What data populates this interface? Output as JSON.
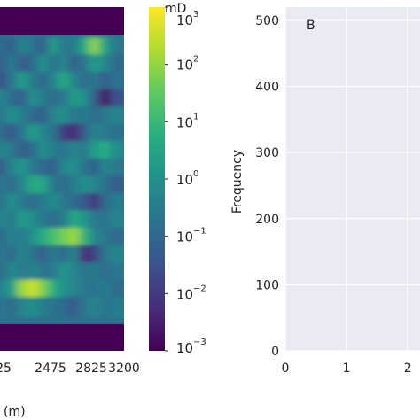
{
  "chart_data": [
    {
      "type": "heatmap",
      "panel": "A",
      "xlabel_fragment": "(m)",
      "x_ticks": [
        "25",
        "2475",
        "2825",
        "3200"
      ],
      "colorbar": {
        "unit_label": "mD",
        "scale": "log",
        "range": [
          0.001,
          1000
        ],
        "tick_bases": [
          "10",
          "10",
          "10",
          "10",
          "10",
          "10",
          "10"
        ],
        "tick_exponents": [
          "3",
          "2",
          "1",
          "0",
          "−1",
          "−2",
          "−3"
        ],
        "colormap": "viridis"
      },
      "bands": [
        {
          "row": 0.04,
          "values": [
            0.35,
            0.3,
            0.45,
            0.38,
            0.3,
            0.55,
            0.4,
            0.42,
            0.6,
            0.82,
            0.55,
            0.4
          ]
        },
        {
          "row": 0.1,
          "values": [
            0.3,
            0.42,
            0.28,
            0.35,
            0.5,
            0.38,
            0.45,
            0.3,
            0.4,
            0.55,
            0.45,
            0.35
          ]
        },
        {
          "row": 0.16,
          "values": [
            0.25,
            0.4,
            0.55,
            0.42,
            0.33,
            0.45,
            0.6,
            0.45,
            0.35,
            0.4,
            0.3,
            0.38
          ]
        },
        {
          "row": 0.22,
          "values": [
            0.45,
            0.35,
            0.3,
            0.5,
            0.42,
            0.35,
            0.4,
            0.55,
            0.5,
            0.3,
            0.05,
            0.25
          ]
        },
        {
          "row": 0.28,
          "values": [
            0.4,
            0.5,
            0.42,
            0.35,
            0.3,
            0.45,
            0.5,
            0.38,
            0.42,
            0.35,
            0.4,
            0.45
          ]
        },
        {
          "row": 0.34,
          "values": [
            0.35,
            0.28,
            0.4,
            0.55,
            0.45,
            0.38,
            0.18,
            0.12,
            0.3,
            0.45,
            0.4,
            0.38
          ]
        },
        {
          "row": 0.4,
          "values": [
            0.45,
            0.4,
            0.3,
            0.35,
            0.5,
            0.42,
            0.38,
            0.45,
            0.4,
            0.55,
            0.62,
            0.48
          ]
        },
        {
          "row": 0.46,
          "values": [
            0.3,
            0.45,
            0.52,
            0.4,
            0.35,
            0.3,
            0.45,
            0.5,
            0.38,
            0.32,
            0.45,
            0.4
          ]
        },
        {
          "row": 0.52,
          "values": [
            0.4,
            0.35,
            0.45,
            0.62,
            0.58,
            0.4,
            0.35,
            0.42,
            0.5,
            0.45,
            0.38,
            0.3
          ]
        },
        {
          "row": 0.58,
          "values": [
            0.38,
            0.5,
            0.4,
            0.35,
            0.42,
            0.48,
            0.4,
            0.35,
            0.28,
            0.15,
            0.35,
            0.42
          ]
        },
        {
          "row": 0.64,
          "values": [
            0.45,
            0.4,
            0.55,
            0.48,
            0.4,
            0.35,
            0.42,
            0.6,
            0.52,
            0.4,
            0.38,
            0.45
          ]
        },
        {
          "row": 0.7,
          "values": [
            0.35,
            0.45,
            0.4,
            0.5,
            0.62,
            0.7,
            0.78,
            0.85,
            0.65,
            0.45,
            0.4,
            0.35
          ]
        },
        {
          "row": 0.76,
          "values": [
            0.4,
            0.35,
            0.45,
            0.38,
            0.3,
            0.42,
            0.35,
            0.45,
            0.12,
            0.2,
            0.4,
            0.45
          ]
        },
        {
          "row": 0.82,
          "values": [
            0.35,
            0.48,
            0.4,
            0.45,
            0.38,
            0.4,
            0.52,
            0.45,
            0.38,
            0.42,
            0.35,
            0.4
          ]
        },
        {
          "row": 0.88,
          "values": [
            0.45,
            0.55,
            0.85,
            0.92,
            0.8,
            0.62,
            0.5,
            0.45,
            0.4,
            0.38,
            0.42,
            0.35
          ]
        },
        {
          "row": 0.94,
          "values": [
            0.4,
            0.35,
            0.45,
            0.5,
            0.42,
            0.38,
            0.35,
            0.28,
            0.4,
            0.45,
            0.38,
            0.42
          ]
        }
      ]
    },
    {
      "type": "bar",
      "panel": "B",
      "panel_label": "B",
      "ylabel": "Frequency",
      "y_ticks": [
        "0",
        "100",
        "200",
        "300",
        "400",
        "500"
      ],
      "x_ticks": [
        "0",
        "1",
        "2"
      ],
      "ylim": [
        0,
        520
      ],
      "xlim": [
        0,
        2.2
      ],
      "values": [],
      "grid": true
    }
  ]
}
